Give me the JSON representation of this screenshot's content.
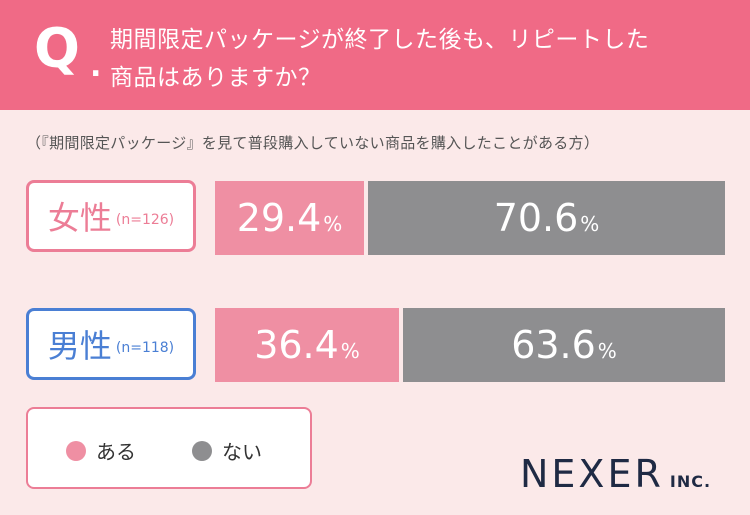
{
  "header": {
    "q_mark": "Q",
    "q_dot": ".",
    "question_line1": "期間限定パッケージが終了した後も、リピートした",
    "question_line2": "商品はありますか？",
    "color": "#f06a86"
  },
  "subtitle": "（『期間限定パッケージ』を見て普段購入していない商品を購入したことがある方）",
  "chart_data": {
    "type": "bar",
    "orientation": "horizontal-stacked-100",
    "categories": [
      "女性",
      "男性"
    ],
    "category_labels": [
      {
        "main": "女性",
        "n": "(n=126)",
        "color": "#ec7d96"
      },
      {
        "main": "男性",
        "n": "(n=118)",
        "color": "#4a7fd4"
      }
    ],
    "series": [
      {
        "name": "ある",
        "values": [
          29.4,
          36.4
        ],
        "color": "#ef8fa3"
      },
      {
        "name": "ない",
        "values": [
          70.6,
          63.6
        ],
        "color": "#8e8e90"
      }
    ],
    "value_suffix": "%",
    "legend_position": "bottom-left"
  },
  "logo": {
    "main": "NEXER",
    "sub": "INC."
  }
}
